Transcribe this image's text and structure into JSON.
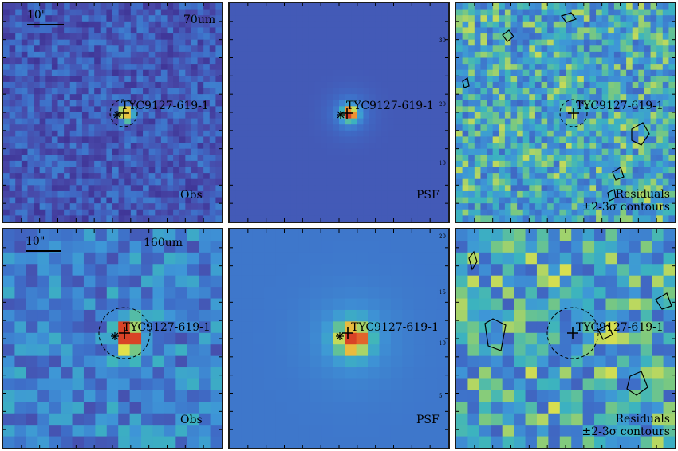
{
  "rows": [
    {
      "band": "70um",
      "scale_label": "10\"",
      "obs_label": "Obs",
      "psf_label": "PSF",
      "resid_line1": "Residuals",
      "resid_line2": "±2-3σ contours",
      "target": "TYC9127-619-1",
      "psf_ticks": [
        "30",
        "20",
        "10"
      ]
    },
    {
      "band": "160um",
      "scale_label": "10\"",
      "obs_label": "Obs",
      "psf_label": "PSF",
      "resid_line1": "Residuals",
      "resid_line2": "±2-3σ contours",
      "target": "TYC9127-619-1",
      "psf_ticks": [
        "20",
        "15",
        "10",
        "5"
      ]
    }
  ],
  "colors": {
    "low": "#3b2d8f",
    "mid": "#3e8fd0",
    "high": "#e2e34a",
    "peak": "#d94226",
    "frame": "#1a1a1a"
  }
}
